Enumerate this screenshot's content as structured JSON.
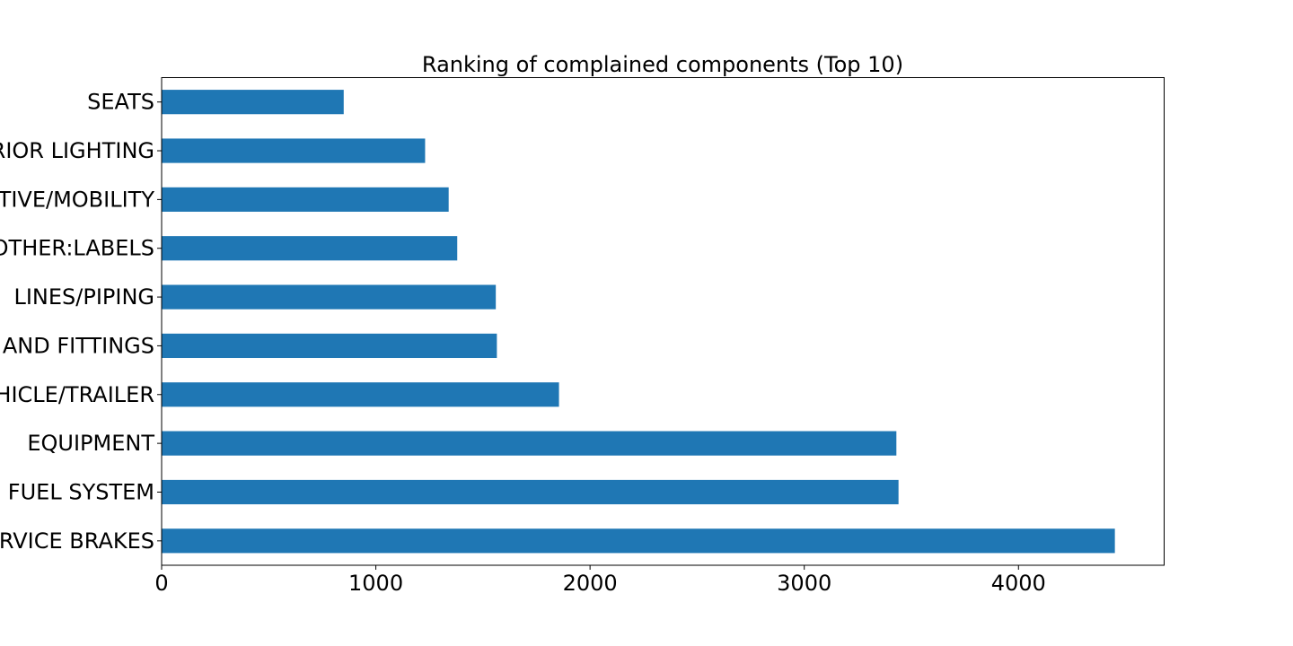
{
  "chart_data": {
    "type": "bar",
    "orientation": "horizontal",
    "title": "Ranking of complained components (Top 10)",
    "xlabel": "",
    "ylabel": "",
    "categories": [
      "SEATS",
      "RIOR LIGHTING",
      "TIVE/MOBILITY",
      "OTHER:LABELS",
      "LINES/PIPING",
      "AND FITTINGS",
      "HICLE/TRAILER",
      "EQUIPMENT",
      "FUEL SYSTEM",
      "RVICE BRAKES"
    ],
    "values": [
      850,
      1230,
      1340,
      1380,
      1560,
      1565,
      1855,
      3430,
      3440,
      4450
    ],
    "xlim": [
      0,
      4680
    ],
    "xticks": [
      0,
      1000,
      2000,
      3000,
      4000
    ],
    "grid": false,
    "legend": "none",
    "bar_color": "#1f77b4"
  }
}
